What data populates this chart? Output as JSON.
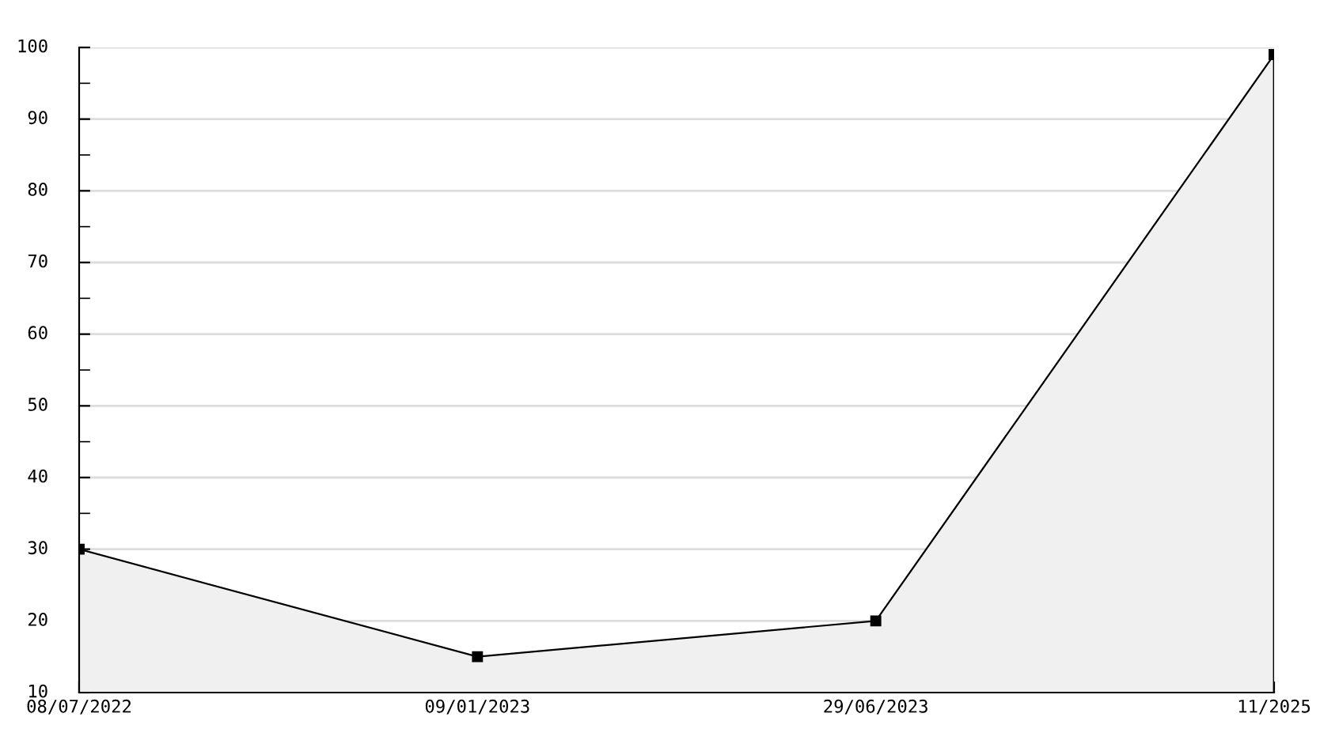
{
  "chart_data": {
    "type": "area",
    "categories": [
      "08/07/2022",
      "09/01/2023",
      "29/06/2023",
      "11/2025"
    ],
    "series": [
      {
        "color": "#000000",
        "values": [
          30,
          15,
          20,
          99
        ]
      }
    ],
    "ylim": [
      10,
      100
    ],
    "yticks": [
      10,
      {
        "value": 15,
        "label": null
      },
      20,
      {
        "value": 25,
        "label": null
      },
      30,
      {
        "value": 35,
        "label": null
      },
      40,
      {
        "value": 45,
        "label": null
      },
      50,
      {
        "value": 55,
        "label": null
      },
      60,
      {
        "value": 65,
        "label": null
      },
      70,
      {
        "value": 75,
        "label": null
      },
      80,
      {
        "value": 85,
        "label": null
      },
      90,
      {
        "value": 95,
        "label": null
      },
      100
    ],
    "grid": "y",
    "marker": "square",
    "line_style": "solid",
    "legend": false
  }
}
